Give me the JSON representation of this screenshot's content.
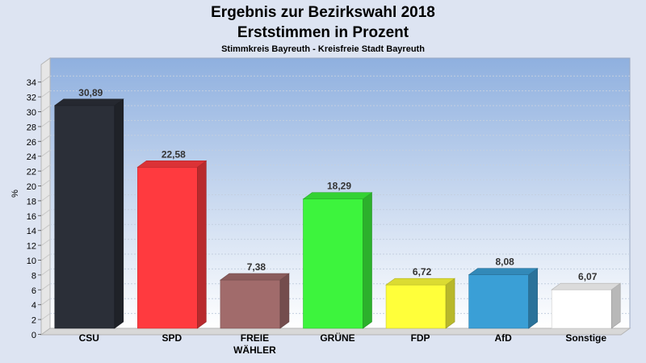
{
  "chart_data": {
    "type": "bar",
    "title": "Ergebnis zur Bezirkswahl 2018",
    "subtitle": "Erststimmen in Prozent",
    "subsubtitle": "Stimmkreis Bayreuth - Kreisfreie Stadt Bayreuth",
    "ylabel": "%",
    "xlabel": "",
    "ylim": [
      0,
      35
    ],
    "yticks": [
      0,
      2,
      4,
      6,
      8,
      10,
      12,
      14,
      16,
      18,
      20,
      22,
      24,
      26,
      28,
      30,
      32,
      34
    ],
    "grid": true,
    "categories": [
      {
        "label": "CSU",
        "label2": ""
      },
      {
        "label": "SPD",
        "label2": ""
      },
      {
        "label": "FREIE",
        "label2": "WÄHLER"
      },
      {
        "label": "GRÜNE",
        "label2": ""
      },
      {
        "label": "FDP",
        "label2": ""
      },
      {
        "label": "AfD",
        "label2": ""
      },
      {
        "label": "Sonstige",
        "label2": ""
      }
    ],
    "values": [
      30.89,
      22.58,
      7.38,
      18.29,
      6.72,
      8.08,
      6.07
    ],
    "value_labels": [
      "30,89",
      "22,58",
      "7,38",
      "18,29",
      "6,72",
      "8,08",
      "6,07"
    ],
    "colors": [
      "#2b2f38",
      "#ff3a3f",
      "#a16b6b",
      "#3df43d",
      "#ffff3a",
      "#3a9fd6",
      "#ffffff"
    ]
  }
}
